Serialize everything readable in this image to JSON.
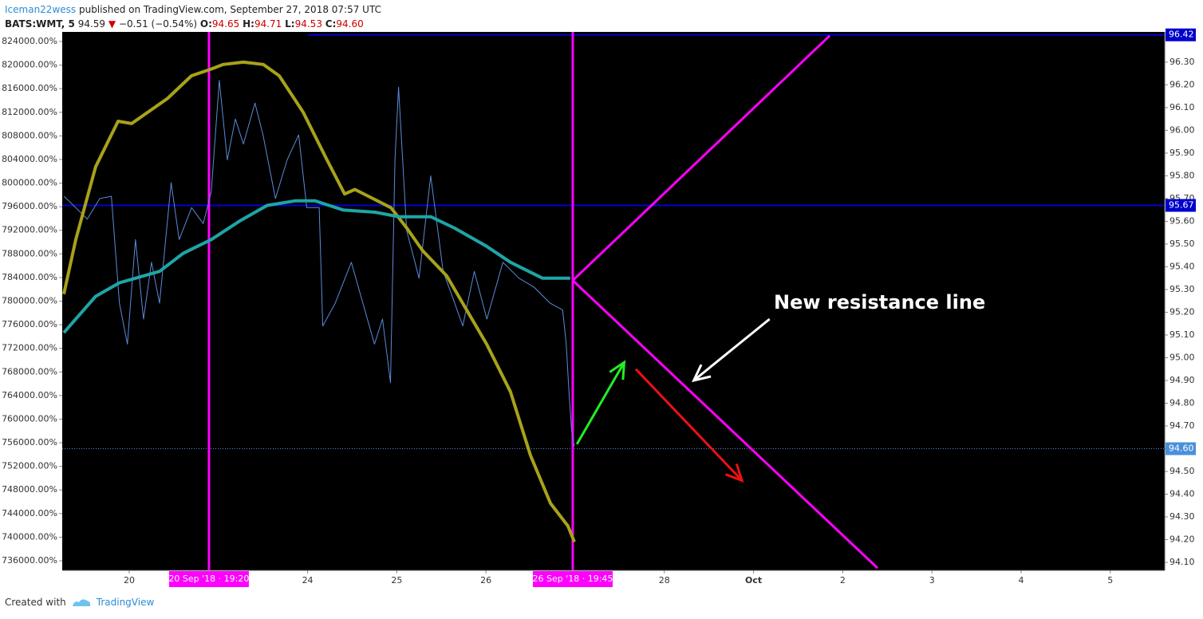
{
  "header": {
    "author": "Iceman22wess",
    "published": "published on TradingView.com, September 27, 2018 07:57 UTC",
    "symbol": "BATS:WMT, 5",
    "last": "94.59",
    "arrow": "▼",
    "change": "−0.51 (−0.54%)",
    "open_label": "O:",
    "open": "94.65",
    "high_label": "H:",
    "high": "94.71",
    "low_label": "L:",
    "low": "94.53",
    "close_label": "C:",
    "close": "94.60"
  },
  "footer": {
    "created": "Created with",
    "brand": "TradingView"
  },
  "chart_data": {
    "type": "line",
    "xlim": [
      -0.751,
      11.61
    ],
    "ylim": [
      94.065,
      96.433
    ],
    "y2lim": [
      734380,
      825620
    ],
    "xticks": [
      {
        "value": 0,
        "label": "20"
      },
      {
        "value": 2,
        "label": "24"
      },
      {
        "value": 3,
        "label": "25"
      },
      {
        "value": 4,
        "label": "26"
      },
      {
        "value": 6,
        "label": "28"
      },
      {
        "value": 7,
        "label": "Oct"
      },
      {
        "value": 8,
        "label": "2"
      },
      {
        "value": 9,
        "label": "3"
      },
      {
        "value": 10,
        "label": "4"
      },
      {
        "value": 11,
        "label": "5"
      }
    ],
    "yticks": [
      {
        "value": 94.1,
        "label": "94.10"
      },
      {
        "value": 94.2,
        "label": "94.20"
      },
      {
        "value": 94.3,
        "label": "94.30"
      },
      {
        "value": 94.4,
        "label": "94.40"
      },
      {
        "value": 94.5,
        "label": "94.50"
      },
      {
        "value": 94.6,
        "label": "94.60"
      },
      {
        "value": 94.7,
        "label": "94.70"
      },
      {
        "value": 94.8,
        "label": "94.80"
      },
      {
        "value": 94.9,
        "label": "94.90"
      },
      {
        "value": 95.0,
        "label": "95.00"
      },
      {
        "value": 95.1,
        "label": "95.10"
      },
      {
        "value": 95.2,
        "label": "95.20"
      },
      {
        "value": 95.3,
        "label": "95.30"
      },
      {
        "value": 95.4,
        "label": "95.40"
      },
      {
        "value": 95.5,
        "label": "95.50"
      },
      {
        "value": 95.6,
        "label": "95.60"
      },
      {
        "value": 95.7,
        "label": "95.70"
      },
      {
        "value": 95.8,
        "label": "95.80"
      },
      {
        "value": 95.9,
        "label": "95.90"
      },
      {
        "value": 96.0,
        "label": "96.00"
      },
      {
        "value": 96.1,
        "label": "96.10"
      },
      {
        "value": 96.2,
        "label": "96.20"
      },
      {
        "value": 96.3,
        "label": "96.30"
      }
    ],
    "y2ticks": [
      {
        "value": 736000,
        "label": "736000.00%"
      },
      {
        "value": 740000,
        "label": "740000.00%"
      },
      {
        "value": 744000,
        "label": "744000.00%"
      },
      {
        "value": 748000,
        "label": "748000.00%"
      },
      {
        "value": 752000,
        "label": "752000.00%"
      },
      {
        "value": 756000,
        "label": "756000.00%"
      },
      {
        "value": 760000,
        "label": "760000.00%"
      },
      {
        "value": 764000,
        "label": "764000.00%"
      },
      {
        "value": 768000,
        "label": "768000.00%"
      },
      {
        "value": 772000,
        "label": "772000.00%"
      },
      {
        "value": 776000,
        "label": "776000.00%"
      },
      {
        "value": 780000,
        "label": "780000.00%"
      },
      {
        "value": 784000,
        "label": "784000.00%"
      },
      {
        "value": 788000,
        "label": "788000.00%"
      },
      {
        "value": 792000,
        "label": "792000.00%"
      },
      {
        "value": 796000,
        "label": "796000.00%"
      },
      {
        "value": 800000,
        "label": "800000.00%"
      },
      {
        "value": 804000,
        "label": "804000.00%"
      },
      {
        "value": 808000,
        "label": "808000.00%"
      },
      {
        "value": 812000,
        "label": "812000.00%"
      },
      {
        "value": 816000,
        "label": "816000.00%"
      },
      {
        "value": 820000,
        "label": "820000.00%"
      },
      {
        "value": 824000,
        "label": "824000.00%"
      }
    ],
    "series": [
      {
        "color": "#5b8bd9",
        "width": 1,
        "x": [
          -0.73,
          -0.6,
          -0.47,
          -0.33,
          -0.2,
          -0.11,
          -0.02,
          0.07,
          0.16,
          0.25,
          0.34,
          0.47,
          0.56,
          0.7,
          0.83,
          0.92,
          1.01,
          1.1,
          1.19,
          1.28,
          1.41,
          1.5,
          1.64,
          1.77,
          1.9,
          1.99,
          2.13,
          2.17,
          2.31,
          2.49,
          2.62,
          2.75,
          2.84,
          2.93,
          2.98,
          3.02,
          3.11,
          3.25,
          3.38,
          3.52,
          3.65,
          3.74,
          3.87,
          4.01,
          4.19,
          4.37,
          4.54,
          4.72,
          4.86,
          4.9,
          4.93,
          4.96,
          4.99
        ],
        "values": [
          95.71,
          95.66,
          95.61,
          95.7,
          95.71,
          95.24,
          95.06,
          95.52,
          95.17,
          95.42,
          95.24,
          95.77,
          95.52,
          95.66,
          95.59,
          95.73,
          96.22,
          95.87,
          96.05,
          95.94,
          96.12,
          95.98,
          95.7,
          95.87,
          95.98,
          95.66,
          95.66,
          95.14,
          95.24,
          95.42,
          95.24,
          95.06,
          95.17,
          94.89,
          95.87,
          96.19,
          95.56,
          95.35,
          95.8,
          95.38,
          95.24,
          95.14,
          95.38,
          95.17,
          95.42,
          95.35,
          95.31,
          95.24,
          95.21,
          95.06,
          94.85,
          94.68,
          94.61
        ]
      },
      {
        "color": "#a8a21a",
        "width": 4,
        "x": [
          -0.733,
          -0.599,
          -0.376,
          -0.125,
          0.027,
          0.429,
          0.698,
          0.921,
          1.055,
          1.279,
          1.503,
          1.682,
          1.95,
          2.218,
          2.415,
          2.531,
          2.934,
          3.113,
          3.292,
          3.56,
          3.739,
          4.007,
          4.275,
          4.499,
          4.723,
          4.919,
          4.991
        ],
        "values": [
          95.28,
          95.52,
          95.84,
          96.04,
          96.03,
          96.14,
          96.24,
          96.27,
          96.29,
          96.3,
          96.29,
          96.24,
          96.08,
          95.87,
          95.72,
          95.74,
          95.66,
          95.57,
          95.47,
          95.36,
          95.24,
          95.06,
          94.85,
          94.57,
          94.36,
          94.26,
          94.19
        ]
      },
      {
        "color": "#1fa5a5",
        "width": 4,
        "x": [
          -0.733,
          -0.555,
          -0.376,
          -0.107,
          0.34,
          0.608,
          0.921,
          1.234,
          1.547,
          1.86,
          2.084,
          2.397,
          2.755,
          3.023,
          3.381,
          3.649,
          4.007,
          4.275,
          4.633,
          4.946
        ],
        "values": [
          95.11,
          95.19,
          95.27,
          95.33,
          95.38,
          95.46,
          95.52,
          95.6,
          95.67,
          95.69,
          95.69,
          95.65,
          95.64,
          95.62,
          95.62,
          95.57,
          95.49,
          95.42,
          95.35,
          95.35
        ]
      }
    ],
    "price_lines": [
      {
        "value": 96.42,
        "color": "#0000cc",
        "badge": "#0000cc",
        "start": 2.0
      },
      {
        "value": 95.67,
        "color": "#0000cc",
        "badge": "#0000cc",
        "start": -0.751
      },
      {
        "value": 94.6,
        "label": "94.60",
        "color": "#5b8bd9",
        "badge": "#4a90d9",
        "start": -0.751,
        "dotted": true
      }
    ],
    "vertical_lines": [
      {
        "x": 0.894,
        "label": "20 Sep '18 · 19:20",
        "color": "#ff00ff"
      },
      {
        "x": 4.973,
        "label": "26 Sep '18 · 19:45",
        "color": "#ff00ff"
      }
    ],
    "drawings": [
      {
        "kind": "line",
        "color": "#ff00ff",
        "x": [
          4.973,
          7.853
        ],
        "values": [
          95.34,
          96.416
        ]
      },
      {
        "kind": "line",
        "color": "#ff00ff",
        "x": [
          4.973,
          8.39
        ],
        "values": [
          95.34,
          94.075
        ]
      },
      {
        "kind": "arrow",
        "color": "#22ee22",
        "x": [
          5.02,
          5.55
        ],
        "values": [
          94.62,
          94.98
        ]
      },
      {
        "kind": "arrow",
        "color": "#ee1111",
        "x": [
          5.68,
          6.87
        ],
        "values": [
          94.95,
          94.46
        ]
      },
      {
        "kind": "arrow",
        "color": "#ffffff",
        "x": [
          7.18,
          6.33
        ],
        "values": [
          95.17,
          94.9
        ]
      }
    ],
    "annotation": "New resistance line"
  }
}
